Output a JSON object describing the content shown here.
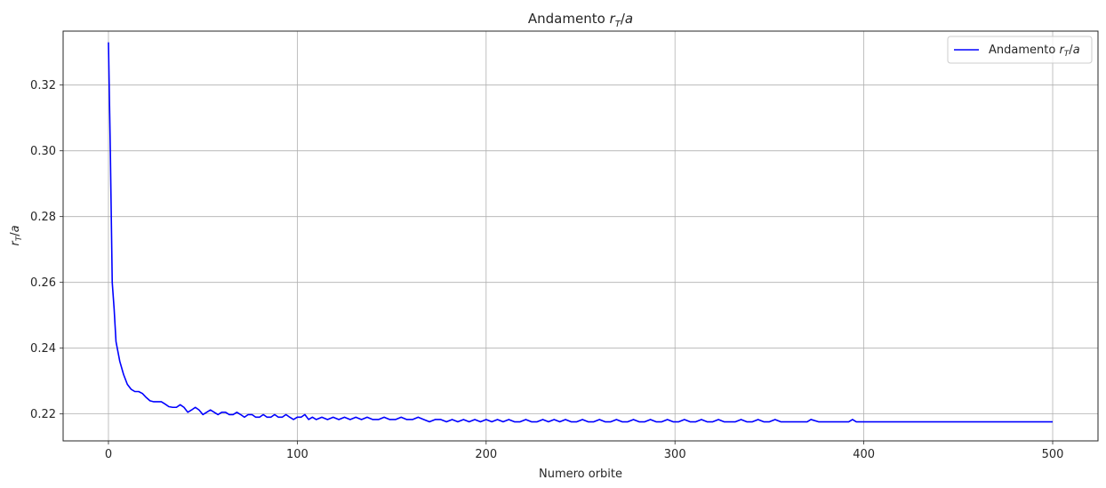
{
  "chart_data": {
    "type": "line",
    "title": "Andamento r_T/a",
    "xlabel": "Numero orbite",
    "ylabel": "r_T/a",
    "xlim": [
      -24,
      524
    ],
    "ylim": [
      0.2118,
      0.3364
    ],
    "xticks": [
      0,
      100,
      200,
      300,
      400,
      500
    ],
    "yticks": [
      0.22,
      0.24,
      0.26,
      0.28,
      0.3,
      0.32
    ],
    "ytick_labels": [
      "0.22",
      "0.24",
      "0.26",
      "0.28",
      "0.30",
      "0.32"
    ],
    "grid": true,
    "legend_position": "top-right",
    "series": [
      {
        "name": "Andamento r_T/a",
        "color": "#0000ff",
        "x": [
          0,
          1,
          2,
          3,
          4,
          5,
          6,
          8,
          10,
          12,
          14,
          16,
          18,
          20,
          22,
          24,
          26,
          28,
          30,
          32,
          34,
          36,
          38,
          40,
          42,
          44,
          46,
          48,
          50,
          52,
          54,
          56,
          58,
          60,
          62,
          64,
          66,
          68,
          70,
          72,
          74,
          76,
          78,
          80,
          82,
          84,
          86,
          88,
          90,
          92,
          94,
          96,
          98,
          100,
          102,
          104,
          106,
          108,
          110,
          113,
          116,
          119,
          122,
          125,
          128,
          131,
          134,
          137,
          140,
          143,
          146,
          149,
          152,
          155,
          158,
          161,
          164,
          167,
          170,
          173,
          176,
          179,
          182,
          185,
          188,
          191,
          194,
          197,
          200,
          203,
          206,
          209,
          212,
          215,
          218,
          221,
          224,
          227,
          230,
          233,
          236,
          239,
          242,
          245,
          248,
          251,
          254,
          257,
          260,
          263,
          266,
          269,
          272,
          275,
          278,
          281,
          284,
          287,
          290,
          293,
          296,
          299,
          302,
          305,
          308,
          311,
          314,
          317,
          320,
          323,
          326,
          329,
          332,
          335,
          338,
          341,
          344,
          347,
          350,
          353,
          356,
          360,
          364,
          368,
          370,
          372,
          376,
          380,
          384,
          388,
          390,
          392,
          394,
          396,
          400,
          420,
          440,
          460,
          480,
          500
        ],
        "y": [
          0.333,
          0.3,
          0.26,
          0.252,
          0.242,
          0.239,
          0.236,
          0.232,
          0.229,
          0.2275,
          0.2268,
          0.2268,
          0.2262,
          0.225,
          0.224,
          0.2237,
          0.2237,
          0.2237,
          0.223,
          0.2222,
          0.222,
          0.222,
          0.2228,
          0.222,
          0.2205,
          0.2212,
          0.222,
          0.2212,
          0.2198,
          0.2205,
          0.2212,
          0.2205,
          0.2198,
          0.2205,
          0.2205,
          0.2198,
          0.2198,
          0.2205,
          0.2198,
          0.219,
          0.2198,
          0.2198,
          0.219,
          0.219,
          0.2198,
          0.219,
          0.219,
          0.2198,
          0.219,
          0.219,
          0.2198,
          0.219,
          0.2183,
          0.219,
          0.219,
          0.2198,
          0.2183,
          0.219,
          0.2183,
          0.219,
          0.2183,
          0.219,
          0.2183,
          0.219,
          0.2183,
          0.219,
          0.2183,
          0.219,
          0.2183,
          0.2183,
          0.219,
          0.2183,
          0.2183,
          0.219,
          0.2183,
          0.2183,
          0.219,
          0.2183,
          0.2176,
          0.2183,
          0.2183,
          0.2176,
          0.2183,
          0.2176,
          0.2183,
          0.2176,
          0.2183,
          0.2176,
          0.2183,
          0.2176,
          0.2183,
          0.2176,
          0.2183,
          0.2176,
          0.2176,
          0.2183,
          0.2176,
          0.2176,
          0.2183,
          0.2176,
          0.2183,
          0.2176,
          0.2183,
          0.2176,
          0.2176,
          0.2183,
          0.2176,
          0.2176,
          0.2183,
          0.2176,
          0.2176,
          0.2183,
          0.2176,
          0.2176,
          0.2183,
          0.2176,
          0.2176,
          0.2183,
          0.2176,
          0.2176,
          0.2183,
          0.2176,
          0.2176,
          0.2183,
          0.2176,
          0.2176,
          0.2183,
          0.2176,
          0.2176,
          0.2183,
          0.2176,
          0.2176,
          0.2176,
          0.2183,
          0.2176,
          0.2176,
          0.2183,
          0.2176,
          0.2176,
          0.2183,
          0.2176,
          0.2176,
          0.2176,
          0.2176,
          0.2176,
          0.2183,
          0.2176,
          0.2176,
          0.2176,
          0.2176,
          0.2176,
          0.2176,
          0.2183,
          0.2176,
          0.2176,
          0.2176,
          0.2176,
          0.2176,
          0.2176,
          0.2176
        ]
      }
    ]
  }
}
